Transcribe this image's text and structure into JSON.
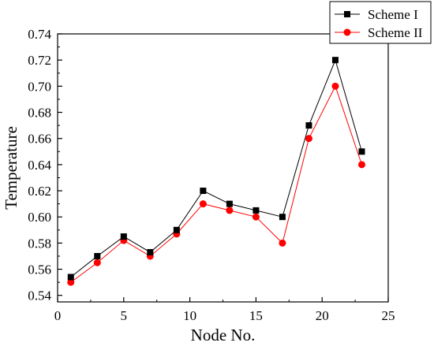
{
  "chart_data": {
    "type": "line",
    "title": "",
    "xlabel": "Node No.",
    "ylabel": "Temperature",
    "xlim": [
      0,
      25
    ],
    "ylim": [
      0.535,
      0.74
    ],
    "xticks": [
      "0",
      "5",
      "10",
      "15",
      "20",
      "25"
    ],
    "yticks": [
      "0.54",
      "0.56",
      "0.58",
      "0.60",
      "0.62",
      "0.64",
      "0.66",
      "0.68",
      "0.70",
      "0.72",
      "0.74"
    ],
    "grid": false,
    "legend_position": "top-right",
    "x": [
      1,
      3,
      5,
      7,
      9,
      11,
      13,
      15,
      17,
      19,
      21,
      23
    ],
    "series": [
      {
        "name": "Scheme I",
        "color": "#000000",
        "marker": "square",
        "values": [
          0.554,
          0.57,
          0.585,
          0.573,
          0.59,
          0.62,
          0.61,
          0.605,
          0.6,
          0.67,
          0.72,
          0.65
        ]
      },
      {
        "name": "Scheme II",
        "color": "#ff0000",
        "marker": "circle",
        "values": [
          0.55,
          0.565,
          0.582,
          0.57,
          0.587,
          0.61,
          0.605,
          0.6,
          0.58,
          0.66,
          0.7,
          0.64
        ]
      }
    ]
  }
}
